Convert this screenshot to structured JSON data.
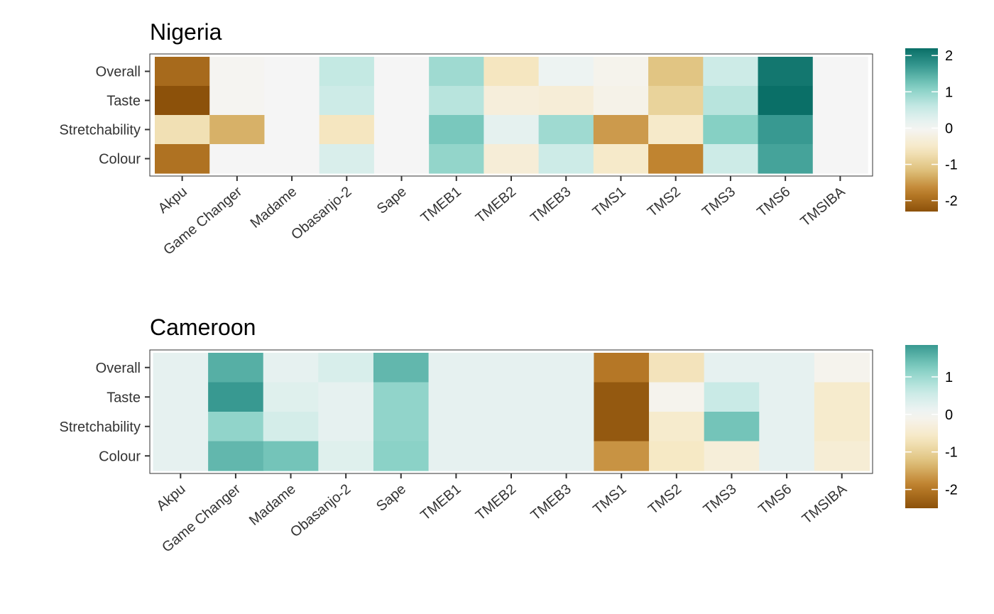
{
  "color_scale": {
    "low": "#8c510a",
    "mid": "#f5f5f5",
    "high": "#01665e",
    "stops": [
      "#8c510a",
      "#bf812d",
      "#dfc27d",
      "#f6e8c3",
      "#f5f5f5",
      "#c7eae5",
      "#80cdc1",
      "#35978f",
      "#01665e"
    ]
  },
  "chart_data": [
    {
      "type": "heatmap",
      "title": "Nigeria",
      "xlabel": "",
      "ylabel": "",
      "x_categories": [
        "Akpu",
        "Game Changer",
        "Madame",
        "Obasanjo-2",
        "Sape",
        "TMEB1",
        "TMEB2",
        "TMEB3",
        "TMS1",
        "TMS2",
        "TMS3",
        "TMS6",
        "TMSIBA"
      ],
      "y_categories": [
        "Overall",
        "Taste",
        "Stretchability",
        "Colour"
      ],
      "values": [
        [
          -2.0,
          -0.05,
          0.0,
          0.6,
          0.0,
          0.9,
          -0.6,
          0.1,
          -0.1,
          -1.1,
          0.5,
          2.1,
          0.0
        ],
        [
          -2.3,
          -0.05,
          0.0,
          0.5,
          0.0,
          0.7,
          -0.3,
          -0.35,
          -0.15,
          -0.9,
          0.7,
          2.2,
          0.0
        ],
        [
          -0.7,
          -1.3,
          0.0,
          -0.6,
          0.0,
          1.2,
          0.2,
          0.9,
          -1.5,
          -0.5,
          1.1,
          1.7,
          0.0
        ],
        [
          -1.9,
          0.0,
          0.0,
          0.35,
          0.0,
          1.0,
          -0.35,
          0.5,
          -0.5,
          -1.7,
          0.5,
          1.6,
          0.0
        ]
      ],
      "legend": {
        "position": "right",
        "limits": [
          -2.3,
          2.2
        ],
        "breaks": [
          2,
          1,
          0,
          -1,
          -2
        ]
      }
    },
    {
      "type": "heatmap",
      "title": "Cameroon",
      "xlabel": "",
      "ylabel": "",
      "x_categories": [
        "Akpu",
        "Game Changer",
        "Madame",
        "Obasanjo-2",
        "Sape",
        "TMEB1",
        "TMEB2",
        "TMEB3",
        "TMS1",
        "TMS2",
        "TMS3",
        "TMS6",
        "TMSIBA"
      ],
      "y_categories": [
        "Overall",
        "Taste",
        "Stretchability",
        "Colour"
      ],
      "values": [
        [
          0.2,
          1.6,
          0.2,
          0.4,
          1.5,
          0.2,
          0.2,
          0.2,
          -2.0,
          -0.7,
          0.2,
          0.2,
          -0.1
        ],
        [
          0.2,
          1.85,
          0.3,
          0.2,
          1.1,
          0.2,
          0.2,
          0.2,
          -2.4,
          -0.1,
          0.6,
          0.2,
          -0.5
        ],
        [
          0.2,
          1.1,
          0.45,
          0.2,
          1.1,
          0.2,
          0.2,
          0.2,
          -2.4,
          -0.5,
          1.35,
          0.2,
          -0.5
        ],
        [
          0.2,
          1.5,
          1.35,
          0.3,
          1.15,
          0.2,
          0.2,
          0.2,
          -1.7,
          -0.6,
          -0.35,
          0.2,
          -0.4
        ]
      ],
      "legend": {
        "position": "right",
        "limits": [
          -2.5,
          1.85
        ],
        "breaks": [
          1,
          0,
          -1,
          -2
        ]
      }
    }
  ]
}
